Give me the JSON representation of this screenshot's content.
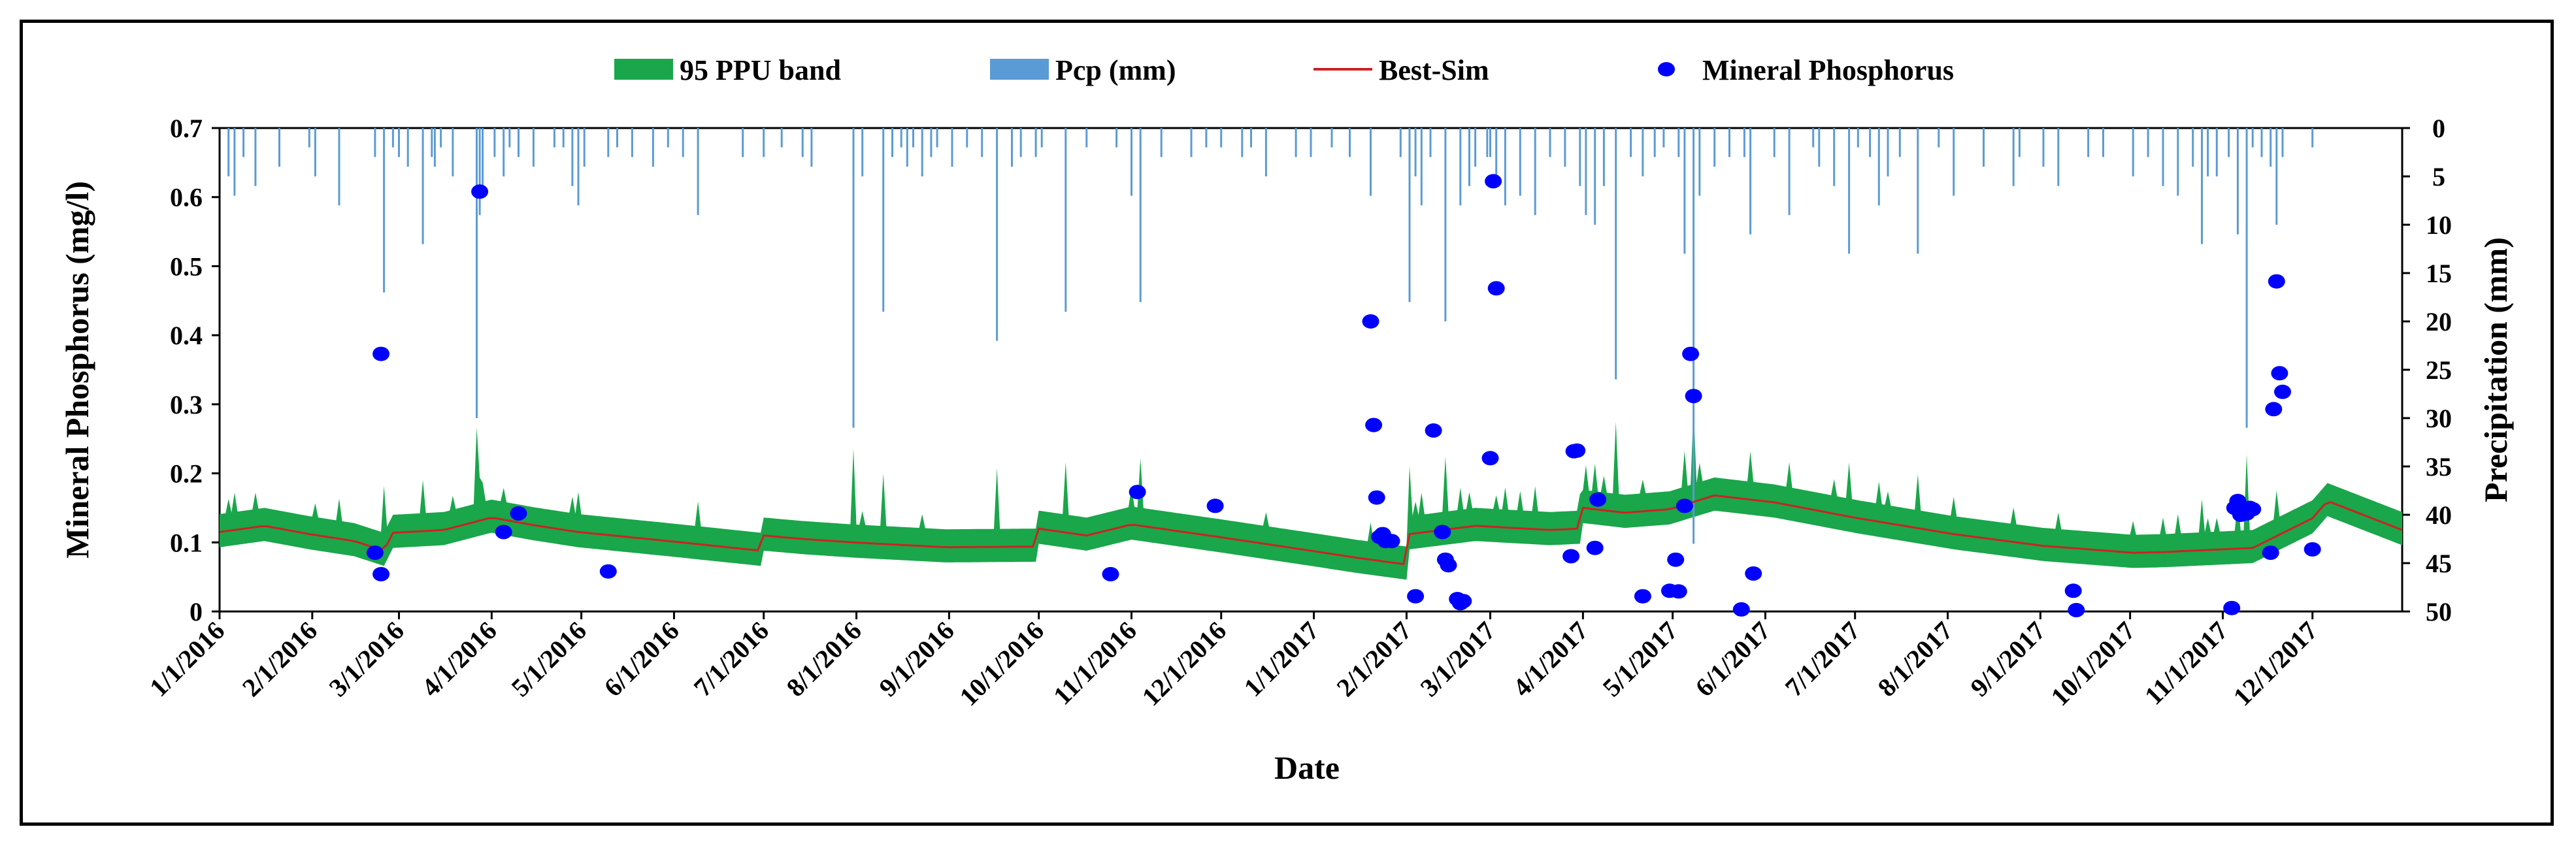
{
  "chart_data": {
    "type": "line",
    "title": "",
    "xlabel": "Date",
    "ylabel": "Mineral Phosphorus (mg/l)",
    "y2label": "Precipitation (mm)",
    "ylim": [
      0,
      0.7
    ],
    "y2lim": [
      0,
      50
    ],
    "y2_inverted": true,
    "yticks": [
      "0",
      "0.1",
      "0.2",
      "0.3",
      "0.4",
      "0.5",
      "0.6",
      "0.7"
    ],
    "y2ticks": [
      "0",
      "5",
      "10",
      "15",
      "20",
      "25",
      "30",
      "35",
      "40",
      "45",
      "50"
    ],
    "xticks": [
      "1/1/2016",
      "2/1/2016",
      "3/1/2016",
      "4/1/2016",
      "5/1/2016",
      "6/1/2016",
      "7/1/2016",
      "8/1/2016",
      "9/1/2016",
      "10/1/2016",
      "11/1/2016",
      "12/1/2016",
      "1/1/2017",
      "2/1/2017",
      "3/1/2017",
      "4/1/2017",
      "5/1/2017",
      "6/1/2017",
      "7/1/2017",
      "8/1/2017",
      "9/1/2017",
      "10/1/2017",
      "11/1/2017",
      "12/1/2017"
    ],
    "x_range_days": [
      0,
      730
    ],
    "legend": {
      "position": "top",
      "items": [
        {
          "name": "95 PPU band",
          "kind": "area",
          "color": "#1aa64a"
        },
        {
          "name": "Pcp (mm)",
          "kind": "bar",
          "color": "#5b9bd5"
        },
        {
          "name": "Best-Sim",
          "kind": "line",
          "color": "#cc2222"
        },
        {
          "name": "Mineral Phosphorus",
          "kind": "scatter",
          "color": "#0000ff"
        }
      ]
    },
    "series": [
      {
        "name": "Best-Sim",
        "type": "line",
        "color": "#cc2222",
        "band_color": "#1aa64a",
        "band_lower_offset": 0.022,
        "band_upper_offset": 0.026,
        "days": [
          0,
          15,
          30,
          45,
          55,
          58,
          75,
          90,
          91,
          105,
          120,
          150,
          181,
          182,
          195,
          212,
          243,
          273,
          274,
          290,
          305,
          334,
          365,
          380,
          397,
          398,
          420,
          445,
          455,
          456,
          470,
          485,
          500,
          520,
          548,
          580,
          610,
          640,
          650,
          680,
          700,
          705,
          730
        ],
        "values": [
          0.115,
          0.124,
          0.112,
          0.102,
          0.088,
          0.114,
          0.118,
          0.135,
          0.136,
          0.125,
          0.115,
          0.102,
          0.088,
          0.11,
          0.105,
          0.1,
          0.093,
          0.094,
          0.12,
          0.11,
          0.126,
          0.108,
          0.088,
          0.078,
          0.068,
          0.112,
          0.124,
          0.118,
          0.12,
          0.15,
          0.143,
          0.148,
          0.168,
          0.158,
          0.135,
          0.112,
          0.095,
          0.085,
          0.086,
          0.092,
          0.135,
          0.16,
          0.118
        ]
      },
      {
        "name": "Mineral Phosphorus",
        "type": "scatter",
        "color": "#0000ff",
        "points": [
          [
            52,
            0.085
          ],
          [
            54,
            0.054
          ],
          [
            54,
            0.373
          ],
          [
            87,
            0.608
          ],
          [
            95,
            0.115
          ],
          [
            100,
            0.142
          ],
          [
            130,
            0.058
          ],
          [
            298,
            0.054
          ],
          [
            307,
            0.173
          ],
          [
            333,
            0.153
          ],
          [
            385,
            0.42
          ],
          [
            386,
            0.27
          ],
          [
            387,
            0.165
          ],
          [
            388,
            0.108
          ],
          [
            389,
            0.112
          ],
          [
            390,
            0.102
          ],
          [
            392,
            0.102
          ],
          [
            400,
            0.022
          ],
          [
            406,
            0.262
          ],
          [
            409,
            0.115
          ],
          [
            410,
            0.075
          ],
          [
            411,
            0.067
          ],
          [
            414,
            0.018
          ],
          [
            415,
            0.012
          ],
          [
            416,
            0.015
          ],
          [
            425,
            0.222
          ],
          [
            426,
            0.623
          ],
          [
            427,
            0.468
          ],
          [
            452,
            0.08
          ],
          [
            453,
            0.232
          ],
          [
            454,
            0.233
          ],
          [
            460,
            0.092
          ],
          [
            461,
            0.162
          ],
          [
            476,
            0.022
          ],
          [
            485,
            0.03
          ],
          [
            487,
            0.075
          ],
          [
            488,
            0.029
          ],
          [
            490,
            0.153
          ],
          [
            492,
            0.373
          ],
          [
            493,
            0.312
          ],
          [
            509,
            0.003
          ],
          [
            513,
            0.055
          ],
          [
            620,
            0.03
          ],
          [
            621,
            0.002
          ],
          [
            673,
            0.005
          ],
          [
            674,
            0.15
          ],
          [
            675,
            0.16
          ],
          [
            676,
            0.14
          ],
          [
            677,
            0.145
          ],
          [
            678,
            0.142
          ],
          [
            679,
            0.15
          ],
          [
            680,
            0.148
          ],
          [
            686,
            0.085
          ],
          [
            687,
            0.293
          ],
          [
            688,
            0.478
          ],
          [
            689,
            0.345
          ],
          [
            690,
            0.318
          ],
          [
            700,
            0.09
          ]
        ]
      },
      {
        "name": "Pcp (mm)",
        "type": "bar",
        "color": "#5b9bd5",
        "days": [
          3,
          5,
          8,
          12,
          20,
          30,
          32,
          40,
          52,
          55,
          58,
          60,
          63,
          68,
          71,
          72,
          74,
          78,
          86,
          87,
          88,
          92,
          95,
          97,
          100,
          105,
          112,
          115,
          118,
          120,
          122,
          130,
          133,
          138,
          145,
          150,
          155,
          160,
          175,
          182,
          188,
          195,
          198,
          212,
          215,
          222,
          225,
          228,
          230,
          232,
          235,
          238,
          240,
          245,
          250,
          255,
          260,
          265,
          268,
          273,
          275,
          283,
          290,
          300,
          305,
          308,
          315,
          325,
          330,
          335,
          342,
          345,
          350,
          360,
          365,
          372,
          378,
          385,
          395,
          398,
          400,
          402,
          405,
          410,
          415,
          418,
          420,
          424,
          425,
          427,
          430,
          435,
          440,
          445,
          450,
          455,
          457,
          460,
          463,
          467,
          472,
          476,
          480,
          483,
          488,
          490,
          493,
          495,
          500,
          505,
          510,
          512,
          520,
          525,
          533,
          535,
          540,
          545,
          548,
          552,
          555,
          558,
          562,
          568,
          575,
          580,
          590,
          600,
          602,
          610,
          615,
          625,
          630,
          640,
          645,
          650,
          655,
          660,
          663,
          665,
          668,
          672,
          675,
          678,
          680,
          683,
          686,
          688,
          690,
          700
        ],
        "values": [
          5,
          7,
          3,
          6,
          4,
          2,
          5,
          8,
          3,
          17,
          2,
          3,
          4,
          12,
          3,
          4,
          2,
          5,
          30,
          9,
          7,
          3,
          5,
          2,
          3,
          4,
          2,
          2,
          6,
          8,
          4,
          3,
          2,
          3,
          4,
          2,
          3,
          9,
          3,
          3,
          2,
          3,
          4,
          31,
          5,
          19,
          3,
          2,
          4,
          2,
          5,
          3,
          2,
          4,
          2,
          3,
          22,
          4,
          3,
          3,
          2,
          19,
          2,
          2,
          7,
          18,
          3,
          3,
          2,
          2,
          3,
          2,
          5,
          3,
          3,
          2,
          3,
          7,
          3,
          18,
          5,
          8,
          3,
          20,
          8,
          6,
          4,
          3,
          3,
          5,
          8,
          7,
          9,
          3,
          4,
          6,
          9,
          10,
          6,
          26,
          3,
          5,
          3,
          2,
          3,
          13,
          43,
          7,
          4,
          3,
          3,
          11,
          3,
          9,
          2,
          4,
          6,
          13,
          2,
          3,
          8,
          5,
          3,
          13,
          2,
          7,
          4,
          6,
          3,
          4,
          6,
          3,
          3,
          5,
          3,
          6,
          7,
          4,
          12,
          5,
          5,
          3,
          11,
          31,
          2,
          3,
          4,
          10,
          3,
          2
        ]
      }
    ]
  }
}
